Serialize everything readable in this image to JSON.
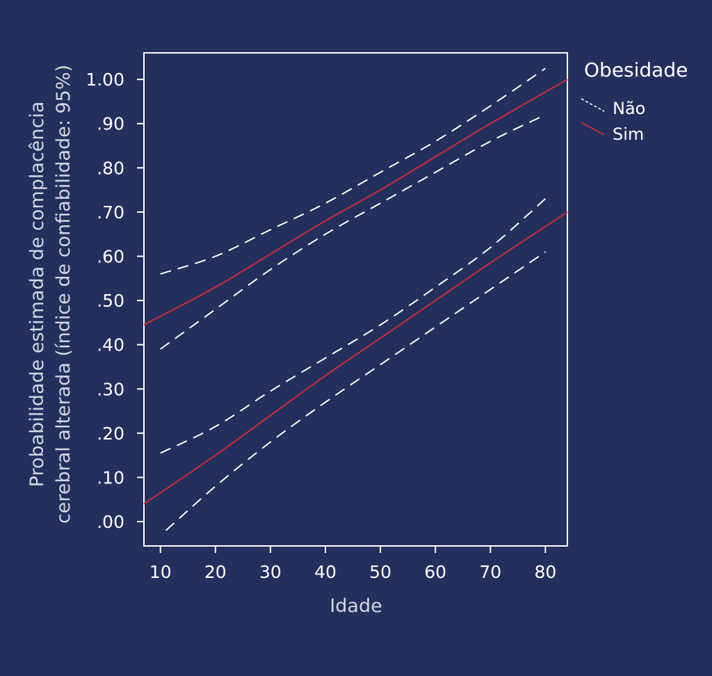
{
  "chart_data": {
    "type": "line",
    "xlabel": "Idade",
    "ylabel_lines": [
      "Probabilidade estimada de complacência",
      "cerebral alterada (índice de confiabilidade: 95%)"
    ],
    "xlim": [
      7,
      84
    ],
    "ylim": [
      -0.055,
      1.06
    ],
    "x_ticks": [
      10,
      20,
      30,
      40,
      50,
      60,
      70,
      80
    ],
    "x_tick_labels": [
      "10",
      "20",
      "30",
      "40",
      "50",
      "60",
      "70",
      "80"
    ],
    "y_ticks": [
      0,
      0.1,
      0.2,
      0.3,
      0.4,
      0.5,
      0.6,
      0.7,
      0.8,
      0.9,
      1.0
    ],
    "y_tick_labels": [
      ".00",
      ".10",
      ".20",
      ".30",
      ".40",
      ".50",
      ".60",
      ".70",
      ".80",
      ".90",
      "1.00"
    ],
    "grid": false,
    "legend": {
      "title": "Obesidade",
      "placement": "right",
      "entries": [
        {
          "label": "Não",
          "style": "dashed",
          "color": "#ffffff"
        },
        {
          "label": "Sim",
          "style": "solid",
          "color": "#c0283a"
        }
      ]
    },
    "series": [
      {
        "group": "Sim",
        "role": "estimate",
        "style": "solid",
        "color": "#c0283a",
        "x": [
          7,
          20,
          30,
          40,
          50,
          60,
          70,
          84
        ],
        "y": [
          0.445,
          0.53,
          0.605,
          0.68,
          0.75,
          0.825,
          0.9,
          1.0
        ]
      },
      {
        "group": "Não",
        "role": "upper",
        "style": "dashed",
        "color": "#ffffff",
        "x": [
          10,
          20,
          30,
          40,
          50,
          60,
          70,
          80
        ],
        "y": [
          0.56,
          0.6,
          0.66,
          0.72,
          0.79,
          0.86,
          0.94,
          1.025
        ]
      },
      {
        "group": "Não",
        "role": "lower",
        "style": "dashed",
        "color": "#ffffff",
        "x": [
          10,
          20,
          30,
          40,
          50,
          60,
          70,
          80
        ],
        "y": [
          0.39,
          0.48,
          0.57,
          0.65,
          0.72,
          0.79,
          0.86,
          0.92
        ]
      },
      {
        "group": "Sim",
        "role": "estimate",
        "style": "solid",
        "color": "#c0283a",
        "x": [
          7,
          20,
          30,
          40,
          50,
          60,
          70,
          84
        ],
        "y": [
          0.04,
          0.15,
          0.24,
          0.33,
          0.415,
          0.5,
          0.585,
          0.7
        ]
      },
      {
        "group": "Não",
        "role": "upper",
        "style": "dashed",
        "color": "#ffffff",
        "x": [
          10,
          20,
          30,
          40,
          50,
          60,
          70,
          80
        ],
        "y": [
          0.155,
          0.215,
          0.295,
          0.37,
          0.445,
          0.53,
          0.62,
          0.73
        ]
      },
      {
        "group": "Não",
        "role": "lower",
        "style": "dashed",
        "color": "#ffffff",
        "x": [
          11,
          20,
          30,
          40,
          50,
          60,
          70,
          80
        ],
        "y": [
          -0.02,
          0.08,
          0.18,
          0.27,
          0.355,
          0.44,
          0.525,
          0.61
        ]
      }
    ]
  }
}
